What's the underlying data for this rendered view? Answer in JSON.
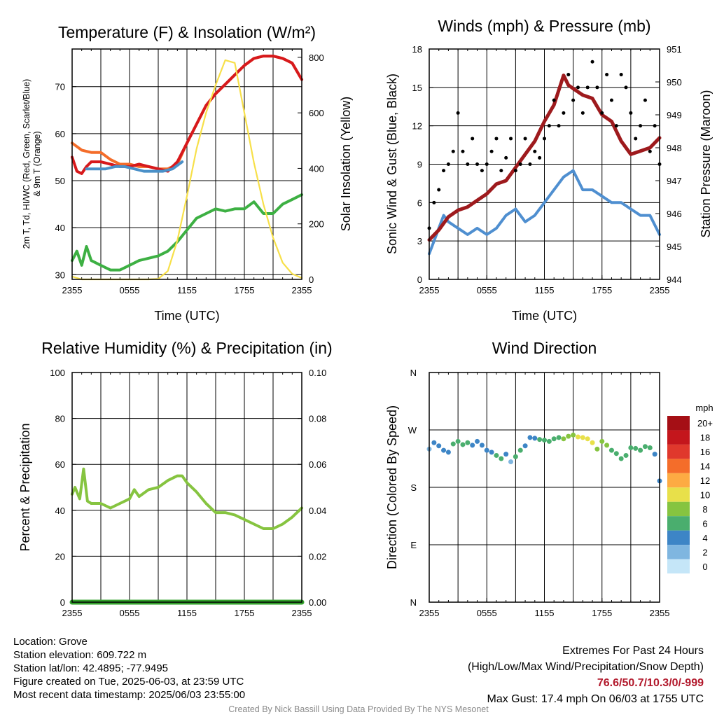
{
  "chart_data": [
    {
      "type": "line",
      "title": "Temperature (F) & Insolation (W/m²)",
      "xlabel": "Time (UTC)",
      "ylabel": "2m T, Td, HI/WC (Red, Green, Scarlet/Blue) & 9m T (Orange)",
      "ylabel2": "Solar Insolation (Yellow)",
      "x_ticks": [
        "2355",
        "0555",
        "1155",
        "1755",
        "2355"
      ],
      "y_ticks": [
        "30",
        "40",
        "50",
        "60",
        "70"
      ],
      "y2_ticks": [
        "0",
        "200",
        "400",
        "600",
        "800"
      ],
      "ylim": [
        29,
        78
      ],
      "y2lim": [
        0,
        830
      ],
      "xlim": [
        0,
        24
      ],
      "series": [
        {
          "axis": "left",
          "color": "#f46d2a",
          "x": [
            0,
            1,
            2,
            3,
            4,
            5,
            6,
            7,
            8,
            9,
            10,
            11,
            12,
            13,
            14,
            15,
            16,
            17,
            18,
            19,
            20,
            21,
            22,
            23,
            24
          ],
          "y": [
            58,
            56.5,
            56,
            56,
            54.5,
            53.5,
            53.5,
            53,
            53,
            52.5,
            52.5,
            53.5,
            58,
            62,
            66,
            68.5,
            70.5,
            72.5,
            74.5,
            76,
            76.5,
            76.5,
            76,
            75,
            71.5
          ]
        },
        {
          "axis": "left",
          "color": "#d7191c",
          "x": [
            0,
            0.5,
            1,
            1.5,
            2,
            3,
            4,
            5,
            6,
            7,
            8,
            9,
            10,
            11,
            12,
            13,
            14,
            15,
            16,
            17,
            18,
            19,
            20,
            21,
            22,
            23,
            24
          ],
          "y": [
            55,
            52,
            51.5,
            53,
            54,
            54,
            53.5,
            53,
            53,
            53.5,
            53,
            52.5,
            52,
            54,
            58,
            62,
            66,
            68.5,
            70.5,
            72.5,
            74.5,
            76,
            76.5,
            76.5,
            76,
            75,
            71.5
          ]
        },
        {
          "axis": "left",
          "color": "#4a90c8",
          "x": [
            1.5,
            2.5,
            3.5,
            4.5,
            5.5,
            6.5,
            7.5,
            8.5,
            9.5,
            10.5,
            11.5
          ],
          "y": [
            52.5,
            52.5,
            52.5,
            53,
            53,
            52.5,
            52,
            52,
            52,
            52.5,
            54
          ]
        },
        {
          "axis": "left",
          "color": "#3db043",
          "x": [
            0,
            0.5,
            1,
            1.5,
            2,
            3,
            4,
            5,
            6,
            7,
            8,
            9,
            10,
            11,
            12,
            13,
            14,
            15,
            16,
            17,
            18,
            19,
            20,
            21,
            22,
            23,
            24
          ],
          "y": [
            33,
            35,
            32,
            36,
            33,
            32,
            31,
            31,
            32,
            33,
            33.5,
            34,
            35,
            37,
            39.5,
            42,
            43,
            44,
            43.5,
            44,
            44,
            45.5,
            43,
            43,
            45,
            46,
            47
          ]
        },
        {
          "axis": "right",
          "color": "#f7e04a",
          "x": [
            0,
            1,
            2,
            3,
            4,
            5,
            6,
            7,
            8,
            9,
            10,
            11,
            12,
            13,
            14,
            15,
            16,
            17,
            18,
            19,
            20,
            21,
            22,
            23,
            24
          ],
          "y": [
            10,
            0,
            0,
            0,
            0,
            0,
            0,
            0,
            0,
            2,
            30,
            140,
            300,
            470,
            600,
            700,
            790,
            780,
            600,
            420,
            270,
            150,
            60,
            20,
            5
          ]
        }
      ]
    },
    {
      "type": "line",
      "title": "Winds (mph) & Pressure (mb)",
      "xlabel": "Time (UTC)",
      "ylabel": "Sonic Wind & Gust (Blue, Black)",
      "ylabel2": "Station Pressure (Maroon)",
      "x_ticks": [
        "2355",
        "0555",
        "1155",
        "1755",
        "2355"
      ],
      "y_ticks": [
        "0",
        "3",
        "6",
        "9",
        "12",
        "15",
        "18"
      ],
      "y2_ticks": [
        "944",
        "945",
        "946",
        "947",
        "948",
        "949",
        "950",
        "951"
      ],
      "ylim": [
        0,
        18
      ],
      "y2lim": [
        944,
        951
      ],
      "xlim": [
        0,
        24
      ],
      "series": [
        {
          "axis": "left",
          "color": "#4f8fd0",
          "x": [
            0,
            0.5,
            1,
            1.5,
            2,
            3,
            4,
            5,
            6,
            7,
            8,
            9,
            10,
            11,
            12,
            13,
            14,
            15,
            16,
            17,
            18,
            19,
            20,
            21,
            22,
            23,
            24
          ],
          "y": [
            2,
            3,
            4,
            5,
            4.5,
            4,
            3.5,
            4,
            3.5,
            4,
            5,
            5.5,
            4.5,
            5,
            6,
            7,
            8,
            8.5,
            7,
            7,
            6.5,
            6,
            6,
            5.5,
            5,
            5,
            3.5
          ]
        },
        {
          "axis": "right",
          "color": "#9e1a1d",
          "x": [
            0,
            1,
            2,
            3,
            4,
            5,
            6,
            7,
            8,
            9,
            10,
            11,
            12,
            13,
            14,
            14.5,
            15,
            16,
            17,
            18,
            19,
            20,
            21,
            22,
            23,
            24
          ],
          "y": [
            945.2,
            945.5,
            945.9,
            946.1,
            946.2,
            946.4,
            946.6,
            946.9,
            947.0,
            947.4,
            947.8,
            948.2,
            948.8,
            949.3,
            950.2,
            949.9,
            949.8,
            949.6,
            949.5,
            949.0,
            948.8,
            948.2,
            947.8,
            947.9,
            948.0,
            948.3
          ]
        }
      ],
      "points": {
        "color": "#000000",
        "x": [
          0,
          0.5,
          1,
          1.5,
          2,
          2.5,
          3,
          3.5,
          4,
          4.5,
          5,
          5.5,
          6,
          6.5,
          7,
          7.5,
          8,
          8.5,
          9,
          9.5,
          10,
          10.5,
          11,
          11.5,
          12,
          12.5,
          13,
          13.5,
          14,
          14.5,
          15,
          15.5,
          16,
          16.5,
          17,
          17.5,
          18,
          18.5,
          19,
          19.5,
          20,
          20.5,
          21,
          21.5,
          22,
          22.5,
          23,
          23.5,
          24
        ],
        "y": [
          4,
          6,
          7,
          8.5,
          9,
          10,
          13,
          10,
          9,
          11,
          9,
          8.5,
          9,
          10,
          11,
          8.5,
          9.5,
          11,
          8.5,
          9,
          11,
          9,
          10,
          9.5,
          11,
          12,
          14,
          12,
          13,
          16,
          14,
          15,
          13,
          15,
          17,
          15,
          13,
          16,
          14,
          12,
          16,
          15,
          13,
          11,
          12,
          14,
          10,
          12,
          9
        ]
      }
    },
    {
      "type": "line",
      "title": "Relative Humidity (%) & Precipitation (in)",
      "xlabel": "",
      "ylabel": "Percent & Precipitation",
      "x_ticks": [
        "2355",
        "0555",
        "1155",
        "1755",
        "2355"
      ],
      "y_ticks": [
        "0",
        "20",
        "40",
        "60",
        "80",
        "100"
      ],
      "y2_ticks": [
        "0.00",
        "0.02",
        "0.04",
        "0.06",
        "0.08",
        "0.10"
      ],
      "ylim": [
        0,
        100
      ],
      "y2lim": [
        0,
        0.1
      ],
      "xlim": [
        0,
        24
      ],
      "series": [
        {
          "axis": "left",
          "color": "#86c440",
          "x": [
            0,
            0.3,
            0.8,
            1.2,
            1.6,
            2,
            2.5,
            3,
            4,
            5,
            6,
            6.5,
            7,
            8,
            9,
            10,
            11,
            11.5,
            12,
            13,
            14,
            15,
            16,
            17,
            18,
            19,
            20,
            21,
            22,
            23,
            24
          ],
          "y": [
            47,
            50,
            45,
            58,
            44,
            43,
            43,
            43,
            41,
            43,
            45,
            49,
            46,
            49,
            50,
            53,
            55,
            55,
            52,
            48,
            43,
            39,
            39,
            38,
            36,
            34,
            32,
            32,
            34,
            37,
            41
          ]
        },
        {
          "axis": "right",
          "color": "#33a02c",
          "x": [
            0,
            24
          ],
          "y": [
            0,
            0
          ]
        }
      ]
    },
    {
      "type": "scatter",
      "title": "Wind Direction",
      "ylabel": "Direction (Colored By Speed)",
      "x_ticks": [
        "2355",
        "0555",
        "1155",
        "1755",
        "2355"
      ],
      "y_ticks": [
        "N",
        "E",
        "S",
        "W",
        "N"
      ],
      "ylim": [
        0,
        360
      ],
      "xlim": [
        0,
        24
      ],
      "points": {
        "x": [
          0,
          0.5,
          1,
          1.5,
          2,
          2.5,
          3,
          3.5,
          4,
          4.5,
          5,
          5.5,
          6,
          6.5,
          7,
          7.5,
          8,
          8.5,
          9,
          9.5,
          10,
          10.5,
          11,
          11.5,
          12,
          12.5,
          13,
          13.5,
          14,
          14.5,
          15,
          15.5,
          16,
          16.5,
          17,
          17.5,
          18,
          18.5,
          19,
          19.5,
          20,
          20.5,
          21,
          21.5,
          22,
          22.5,
          23,
          23.5,
          24
        ],
        "direction": [
          240,
          250,
          245,
          238,
          235,
          248,
          252,
          247,
          250,
          246,
          252,
          246,
          238,
          235,
          230,
          225,
          232,
          220,
          228,
          238,
          245,
          258,
          257,
          255,
          254,
          252,
          256,
          258,
          256,
          260,
          262,
          259,
          258,
          256,
          250,
          240,
          252,
          246,
          238,
          233,
          225,
          230,
          242,
          241,
          238,
          244,
          242,
          232,
          190
        ],
        "speed": [
          2,
          3,
          3,
          4,
          4,
          5,
          6,
          6,
          5,
          4,
          4,
          4,
          4,
          4,
          5,
          6,
          4,
          2,
          5,
          5,
          4,
          4,
          4,
          5,
          5,
          6,
          6,
          6,
          7,
          8,
          8,
          9,
          9,
          10,
          9,
          8,
          8,
          7,
          6,
          6,
          6,
          5,
          6,
          6,
          5,
          6,
          6,
          4,
          3
        ]
      },
      "colorbar": {
        "title": "mph",
        "labels": [
          "20+",
          "18",
          "16",
          "14",
          "12",
          "10",
          "8",
          "6",
          "4",
          "2",
          "0"
        ],
        "colors": [
          "#a50f15",
          "#c4161c",
          "#e0382c",
          "#f46d2a",
          "#fdab43",
          "#e8e04a",
          "#86c440",
          "#4aae6e",
          "#3d85c6",
          "#7fb6e0",
          "#c5e6f8"
        ]
      }
    }
  ],
  "footer": {
    "location": "Location: Grove",
    "elevation": "Station elevation: 609.722 m",
    "latlon": "Station lat/lon: 42.4895; -77.9495",
    "created": "Figure created on Tue, 2025-06-03, at 23:59 UTC",
    "recent": "Most recent data timestamp: 2025/06/03 23:55:00",
    "extremes_title": "Extremes For Past 24 Hours",
    "extremes_sub": "(High/Low/Max Wind/Precipitation/Snow Depth)",
    "extremes_values": "76.6/50.7/10.3/0/-999",
    "max_gust": "Max Gust: 17.4 mph On 06/03 at 1755 UTC",
    "credit": "Created By Nick Bassill Using Data Provided By The NYS Mesonet"
  }
}
